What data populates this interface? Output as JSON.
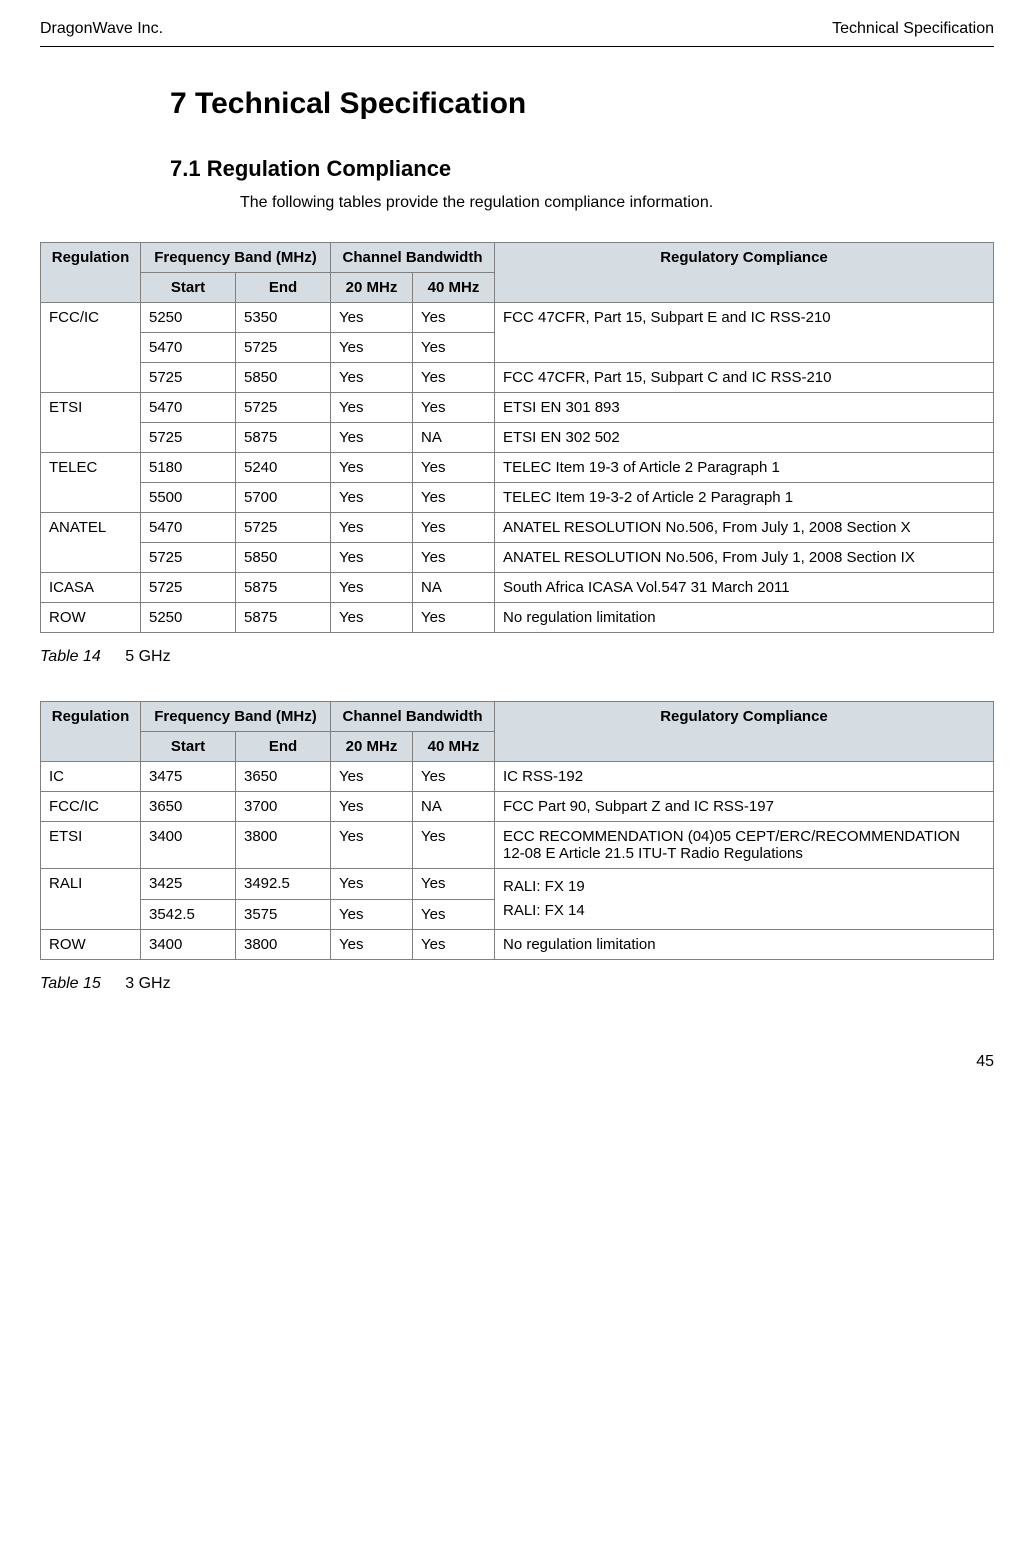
{
  "header": {
    "left": "DragonWave Inc.",
    "right": "Technical Specification"
  },
  "section": {
    "heading1": "7   Technical Specification",
    "heading2": "7.1   Regulation Compliance",
    "intro": "The following tables provide the regulation compliance information."
  },
  "table1": {
    "headers": {
      "regulation": "Regulation",
      "freqBand": "Frequency Band (MHz)",
      "channelBw": "Channel Bandwidth",
      "compliance": "Regulatory Compliance",
      "start": "Start",
      "end": "End",
      "bw20": "20 MHz",
      "bw40": "40 MHz"
    },
    "rows": [
      {
        "regulation": "FCC/IC",
        "regRowspan": 3,
        "start": "5250",
        "end": "5350",
        "bw20": "Yes",
        "bw40": "Yes",
        "compliance": "FCC 47CFR, Part 15, Subpart E and IC RSS-210",
        "compRowspan": 2
      },
      {
        "start": "5470",
        "end": "5725",
        "bw20": "Yes",
        "bw40": "Yes"
      },
      {
        "start": "5725",
        "end": "5850",
        "bw20": "Yes",
        "bw40": "Yes",
        "compliance": "FCC 47CFR, Part 15, Subpart C and IC RSS-210"
      },
      {
        "regulation": "ETSI",
        "regRowspan": 2,
        "start": "5470",
        "end": "5725",
        "bw20": "Yes",
        "bw40": "Yes",
        "compliance": "ETSI EN 301 893"
      },
      {
        "start": "5725",
        "end": "5875",
        "bw20": "Yes",
        "bw40": "NA",
        "compliance": "ETSI EN 302 502"
      },
      {
        "regulation": "TELEC",
        "regRowspan": 2,
        "start": "5180",
        "end": "5240",
        "bw20": "Yes",
        "bw40": "Yes",
        "compliance": "TELEC Item 19-3 of Article 2 Paragraph 1"
      },
      {
        "start": "5500",
        "end": "5700",
        "bw20": "Yes",
        "bw40": "Yes",
        "compliance": "TELEC Item 19-3-2 of Article 2 Paragraph 1"
      },
      {
        "regulation": "ANATEL",
        "regRowspan": 2,
        "start": "5470",
        "end": "5725",
        "bw20": "Yes",
        "bw40": "Yes",
        "compliance": "ANATEL RESOLUTION No.506, From July 1, 2008 Section X"
      },
      {
        "start": "5725",
        "end": "5850",
        "bw20": "Yes",
        "bw40": "Yes",
        "compliance": "ANATEL RESOLUTION No.506, From July 1, 2008 Section IX"
      },
      {
        "regulation": "ICASA",
        "start": "5725",
        "end": "5875",
        "bw20": "Yes",
        "bw40": "NA",
        "compliance": "South Africa ICASA Vol.547 31 March 2011"
      },
      {
        "regulation": "ROW",
        "start": "5250",
        "end": "5875",
        "bw20": "Yes",
        "bw40": "Yes",
        "compliance": "No regulation limitation"
      }
    ],
    "captionLabel": "Table 14",
    "captionText": "5 GHz"
  },
  "table2": {
    "headers": {
      "regulation": "Regulation",
      "freqBand": "Frequency Band (MHz)",
      "channelBw": "Channel Bandwidth",
      "compliance": "Regulatory Compliance",
      "start": "Start",
      "end": "End",
      "bw20": "20 MHz",
      "bw40": "40 MHz"
    },
    "rows": [
      {
        "regulation": "IC",
        "start": "3475",
        "end": "3650",
        "bw20": "Yes",
        "bw40": "Yes",
        "compliance": "IC RSS-192"
      },
      {
        "regulation": "FCC/IC",
        "start": "3650",
        "end": "3700",
        "bw20": "Yes",
        "bw40": "NA",
        "compliance": "FCC Part 90, Subpart Z and IC RSS-197"
      },
      {
        "regulation": "ETSI",
        "start": "3400",
        "end": "3800",
        "bw20": "Yes",
        "bw40": "Yes",
        "compliance": "ECC RECOMMENDATION (04)05 CEPT/ERC/RECOMMENDATION 12-08 E Article 21.5 ITU-T Radio Regulations"
      },
      {
        "regulation": "RALI",
        "regRowspan": 2,
        "start": "3425",
        "end": "3492.5",
        "bw20": "Yes",
        "bw40": "Yes",
        "compliance": "RALI: FX 19\nRALI: FX 14",
        "compRowspan": 2
      },
      {
        "start": "3542.5",
        "end": "3575",
        "bw20": "Yes",
        "bw40": "Yes"
      },
      {
        "regulation": "ROW",
        "start": "3400",
        "end": "3800",
        "bw20": "Yes",
        "bw40": "Yes",
        "compliance": "No regulation limitation"
      }
    ],
    "captionLabel": "Table 15",
    "captionText": "3 GHz"
  },
  "pageNumber": "45"
}
